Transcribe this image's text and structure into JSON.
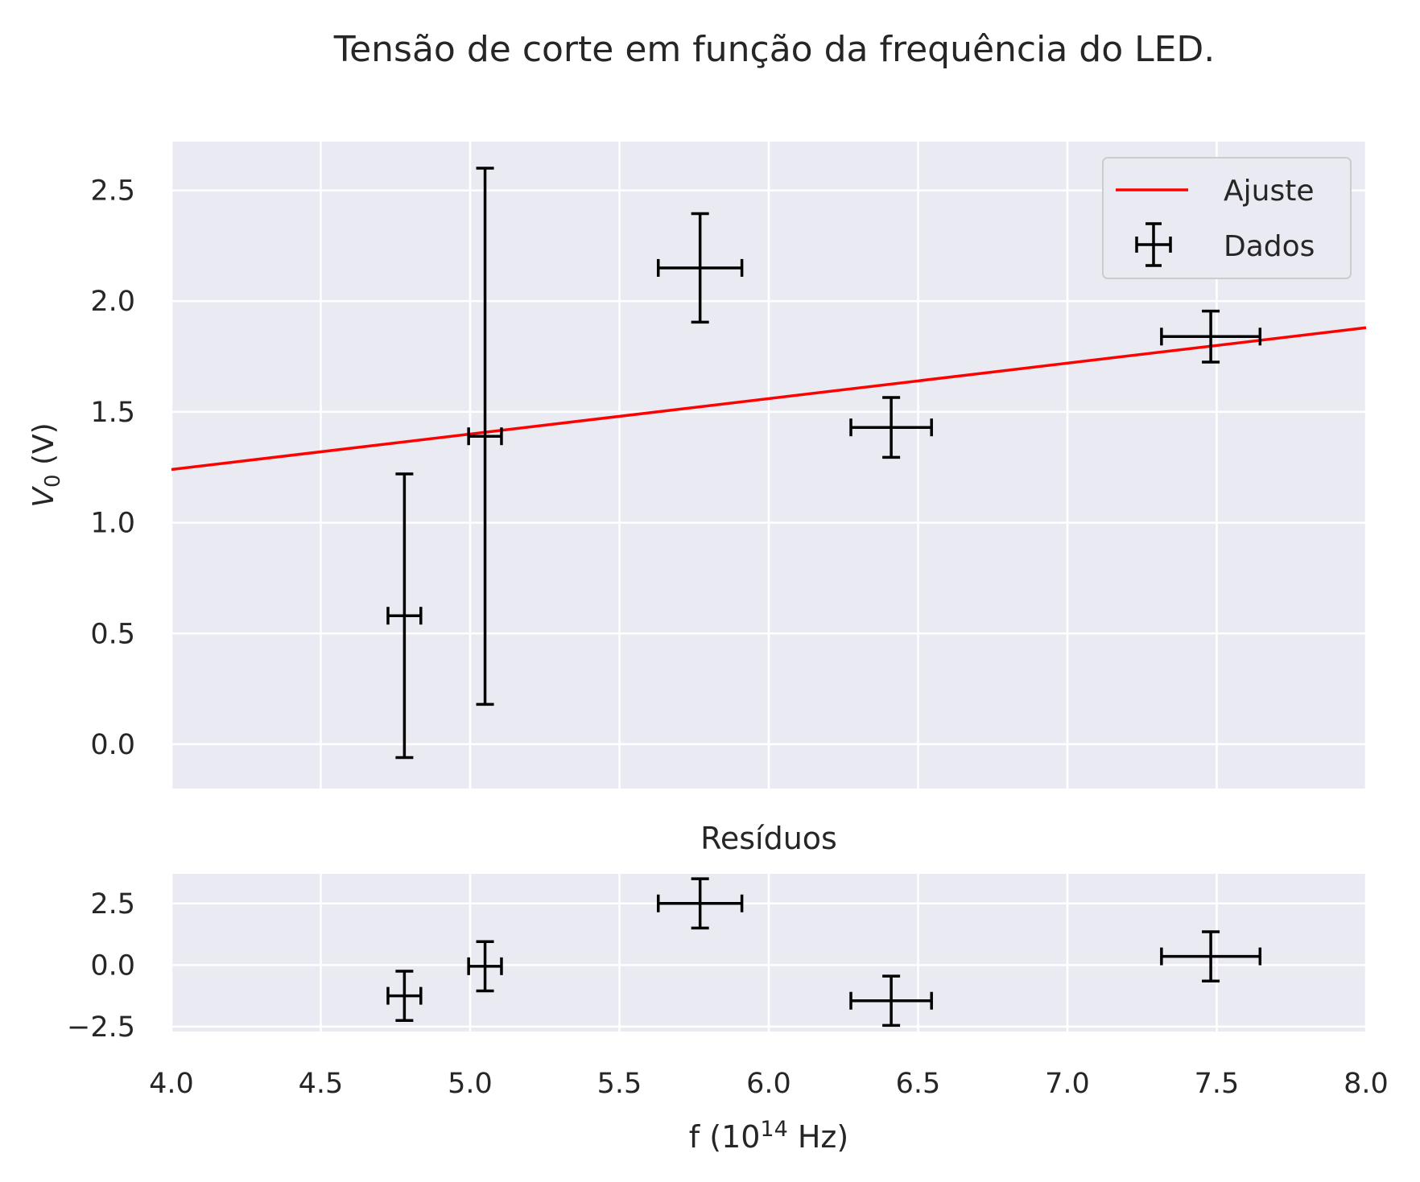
{
  "title": "Tensão de corte em função da frequência do LED.",
  "legend": {
    "fit_label": "Ajuste",
    "data_label": "Dados",
    "placement": "upper right"
  },
  "colors": {
    "fit": "#ff0000",
    "data": "#000000",
    "panel_bg": "#eaeaf2",
    "grid": "#ffffff"
  },
  "chart_data": [
    {
      "type": "scatter",
      "panel": "main",
      "title": "",
      "xlabel": "",
      "ylabel": "V_0 (V)",
      "xlim": [
        4.0,
        8.0
      ],
      "ylim": [
        -0.2,
        2.72
      ],
      "xticks": [
        4.0,
        4.5,
        5.0,
        5.5,
        6.0,
        6.5,
        7.0,
        7.5,
        8.0
      ],
      "yticks": [
        0.0,
        0.5,
        1.0,
        1.5,
        2.0,
        2.5
      ],
      "ytick_labels": [
        "0.0",
        "0.5",
        "1.0",
        "1.5",
        "2.0",
        "2.5"
      ],
      "grid": true,
      "series": [
        {
          "name": "Dados",
          "kind": "errorbar",
          "x": [
            4.78,
            5.05,
            5.77,
            6.41,
            7.48
          ],
          "xerr": [
            0.055,
            0.055,
            0.14,
            0.135,
            0.165
          ],
          "y": [
            0.58,
            1.39,
            2.15,
            1.43,
            1.84
          ],
          "yerr": [
            0.64,
            1.21,
            0.245,
            0.135,
            0.115
          ]
        },
        {
          "name": "Ajuste",
          "kind": "line",
          "x": [
            4.0,
            8.0
          ],
          "y": [
            1.24,
            1.88
          ]
        }
      ]
    },
    {
      "type": "scatter",
      "panel": "residuals",
      "title": "Resíduos",
      "xlabel": "f (10^14 Hz)",
      "ylabel": "",
      "xlim": [
        4.0,
        8.0
      ],
      "ylim": [
        -2.7,
        3.7
      ],
      "xticks": [
        4.0,
        4.5,
        5.0,
        5.5,
        6.0,
        6.5,
        7.0,
        7.5,
        8.0
      ],
      "xtick_labels": [
        "4.0",
        "4.5",
        "5.0",
        "5.5",
        "6.0",
        "6.5",
        "7.0",
        "7.5",
        "8.0"
      ],
      "yticks": [
        -2.5,
        0.0,
        2.5
      ],
      "ytick_labels": [
        "−2.5",
        "0.0",
        "2.5"
      ],
      "grid": true,
      "series": [
        {
          "name": "",
          "kind": "errorbar",
          "x": [
            4.78,
            5.05,
            5.77,
            6.41,
            7.48
          ],
          "xerr": [
            0.055,
            0.055,
            0.14,
            0.135,
            0.165
          ],
          "y": [
            -1.25,
            -0.05,
            2.5,
            -1.45,
            0.35
          ],
          "yerr": [
            1.0,
            1.0,
            1.0,
            1.0,
            1.0
          ]
        }
      ]
    }
  ]
}
